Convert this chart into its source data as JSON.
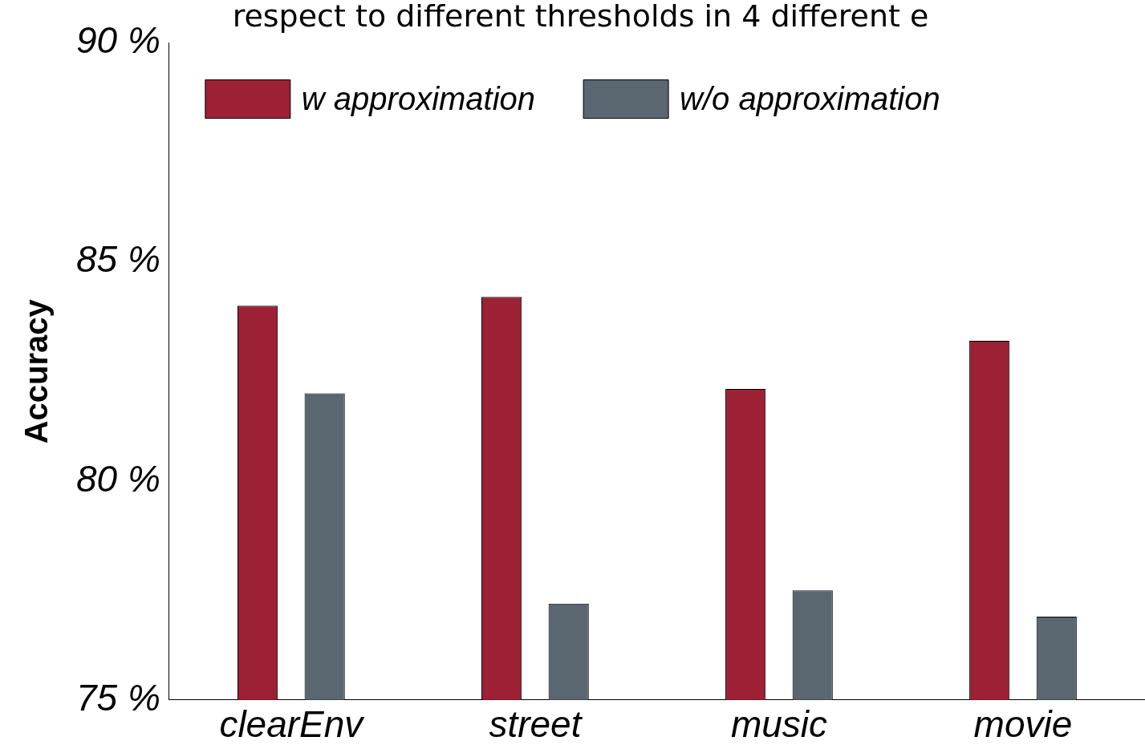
{
  "chart_data": {
    "type": "bar",
    "title": "respect to different thresholds in 4 different e",
    "ylabel": "Accuracy",
    "categories": [
      "clearEnv",
      "street",
      "music",
      "movie"
    ],
    "series": [
      {
        "name": "w approximation",
        "color": "#9c2135",
        "values": [
          84.0,
          84.2,
          82.1,
          83.2
        ]
      },
      {
        "name": "w/o approximation",
        "color": "#5a6670",
        "values": [
          82.0,
          77.2,
          77.5,
          76.9
        ]
      }
    ],
    "ylim": [
      75,
      90
    ],
    "yticks": [
      {
        "value": 75,
        "label": "75 %"
      },
      {
        "value": 80,
        "label": "80 %"
      },
      {
        "value": 85,
        "label": "85 %"
      },
      {
        "value": 90,
        "label": "90 %"
      }
    ],
    "grid": false,
    "legend": "top left"
  }
}
